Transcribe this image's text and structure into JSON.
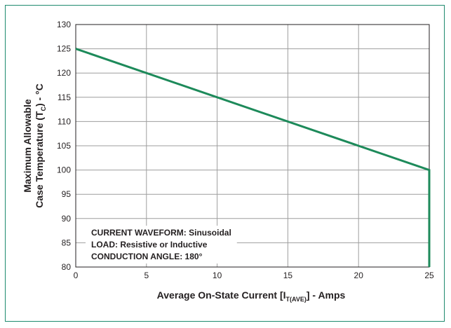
{
  "colors": {
    "frame": "#1e8a6e",
    "line": "#1d8a5a",
    "grid": "#9e9e9e",
    "axis": "#231f20"
  },
  "chart_data": {
    "type": "line",
    "x_ticks": [
      0,
      5,
      10,
      15,
      20,
      25
    ],
    "y_ticks": [
      80,
      85,
      90,
      95,
      100,
      105,
      110,
      115,
      120,
      125,
      130
    ],
    "xlim": [
      0,
      25
    ],
    "ylim": [
      80,
      130
    ],
    "grid": true,
    "xlabel": {
      "main": "Average On-State Current [I",
      "sub": "T(AVE)",
      "tail": "] - Amps"
    },
    "ylabel": {
      "line1": "Maximum Allowable",
      "line2_main": "Case Temperature (T",
      "line2_sub": "C",
      "line2_tail": ") - °C"
    },
    "series": [
      {
        "x": [
          0,
          25,
          25
        ],
        "y": [
          125,
          100,
          80
        ]
      }
    ],
    "annotations": [
      "CURRENT WAVEFORM: Sinusoidal",
      "LOAD: Resistive or Inductive",
      "CONDUCTION ANGLE: 180°"
    ]
  }
}
